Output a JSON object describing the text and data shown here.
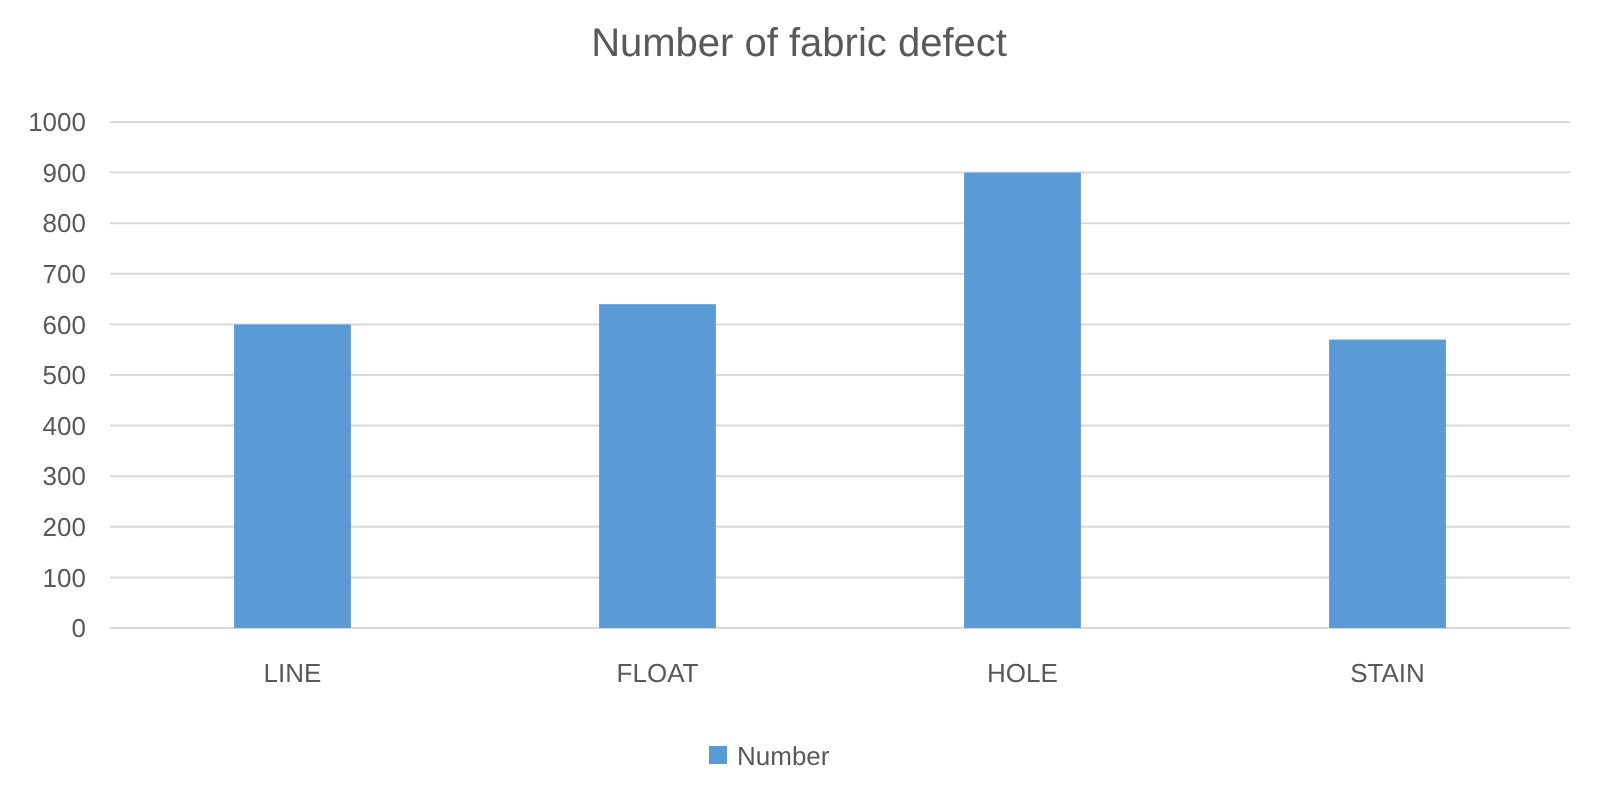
{
  "chart_data": {
    "type": "bar",
    "title": "Number of fabric defect",
    "categories": [
      "LINE",
      "FLOAT",
      "HOLE",
      "STAIN"
    ],
    "series": [
      {
        "name": "Number",
        "color": "#5b9bd5",
        "values": [
          600,
          640,
          900,
          570
        ]
      }
    ],
    "ylim": [
      0,
      1000
    ],
    "yticks": [
      0,
      100,
      200,
      300,
      400,
      500,
      600,
      700,
      800,
      900,
      1000
    ],
    "grid": "y",
    "legend": "bottom"
  }
}
